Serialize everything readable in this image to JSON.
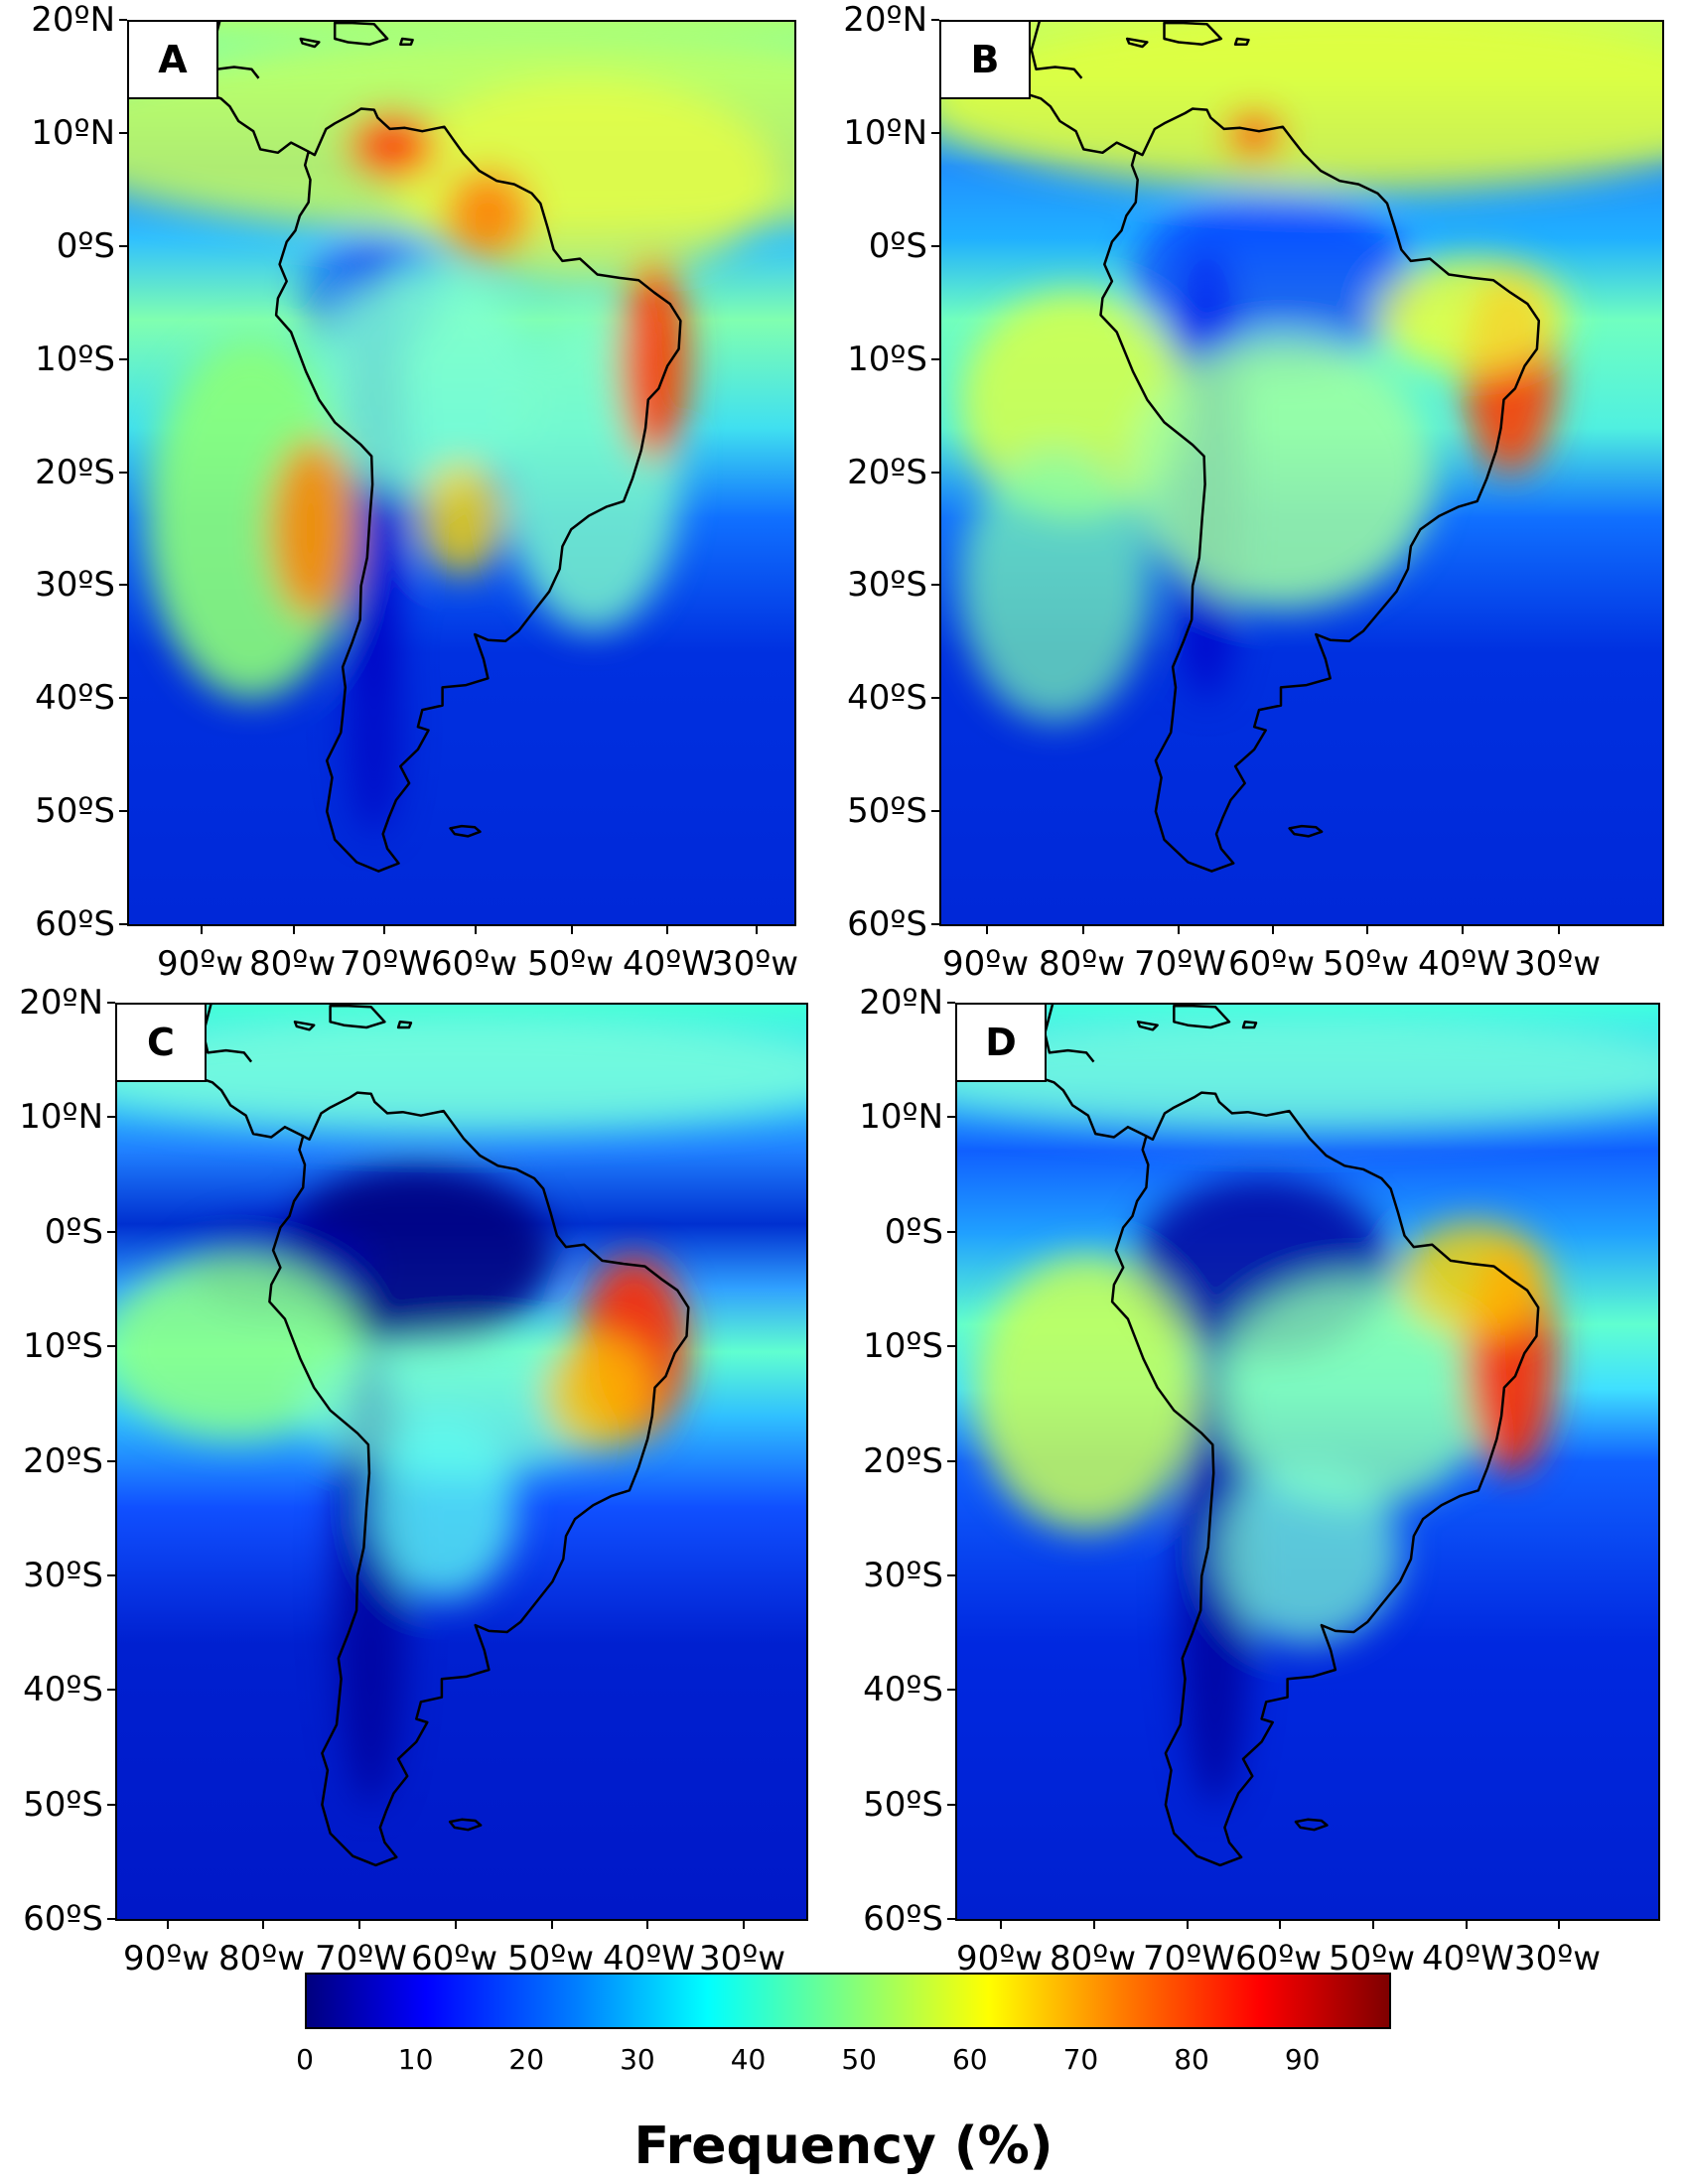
{
  "panels": [
    {
      "letter": "A",
      "variant": "A"
    },
    {
      "letter": "B",
      "variant": "B"
    },
    {
      "letter": "C",
      "variant": "C"
    },
    {
      "letter": "D",
      "variant": "D"
    }
  ],
  "lat_labels": [
    "20ºN",
    "10ºN",
    "0ºS",
    "10ºS",
    "20ºS",
    "30ºS",
    "40ºS",
    "50ºS",
    "60ºS"
  ],
  "lon_labels": [
    "90ºw",
    "80ºw",
    "70ºW",
    "60ºw",
    "50ºw",
    "40ºW",
    "30ºw"
  ],
  "colorbar": {
    "title": "Frequency (%)",
    "ticks": [
      "0",
      "10",
      "20",
      "30",
      "40",
      "50",
      "60",
      "70",
      "80",
      "90"
    ],
    "range": [
      0,
      98
    ],
    "colormap": "jet",
    "colors": [
      "#00007f",
      "#0000ff",
      "#007fff",
      "#00ffff",
      "#7fff7f",
      "#ffff00",
      "#ff7f00",
      "#ff0000",
      "#7f0000"
    ]
  }
}
